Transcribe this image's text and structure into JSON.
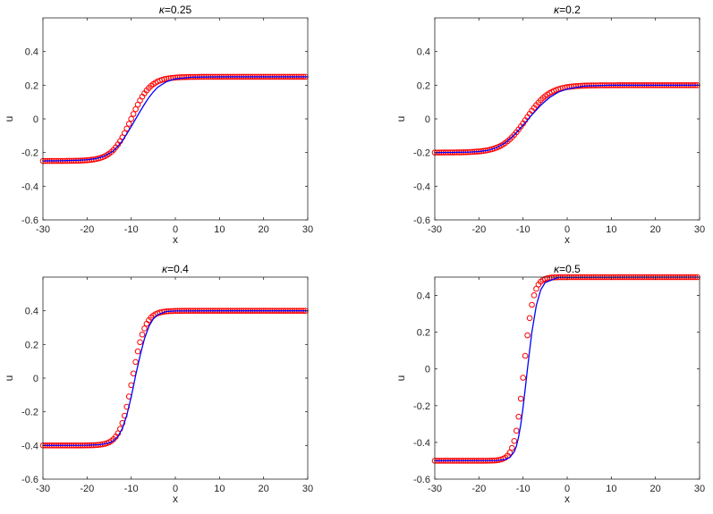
{
  "colors": {
    "curve": "#0000ff",
    "markers": "#ff0000",
    "axes": "#262626"
  },
  "chart_data": [
    {
      "type": "line",
      "title_symbol": "κ",
      "title": "=0.25",
      "xlabel": "x",
      "ylabel": "u",
      "xlim": [
        -30,
        30
      ],
      "ylim": [
        -0.6,
        0.6
      ],
      "xticks": [
        "-30",
        "-20",
        "-10",
        "0",
        "10",
        "20",
        "30"
      ],
      "yticks": [
        "-0.6",
        "-0.4",
        "-0.2",
        "0",
        "0.2",
        "0.4"
      ],
      "grid": false,
      "series": [
        {
          "style": "solid-line",
          "x": [
            -30,
            -26,
            -22,
            -20,
            -18,
            -16,
            -14,
            -13,
            -12,
            -11,
            -10,
            -9,
            -8,
            -7,
            -6,
            -5,
            -4,
            -2,
            0,
            4,
            10,
            20,
            30
          ],
          "y": [
            -0.25,
            -0.249,
            -0.246,
            -0.243,
            -0.236,
            -0.221,
            -0.19,
            -0.163,
            -0.13,
            -0.089,
            -0.046,
            -0.001,
            0.044,
            0.087,
            0.127,
            0.16,
            0.188,
            0.221,
            0.238,
            0.248,
            0.25,
            0.25,
            0.25
          ]
        },
        {
          "style": "circle-markers",
          "x_start": -30,
          "x_end": 29.5,
          "x_step": 0.5,
          "curve": {
            "form": "tanh",
            "amplitude": 0.25,
            "center": -10,
            "scale": 0.235
          }
        }
      ]
    },
    {
      "type": "line",
      "title_symbol": "κ",
      "title": "=0.2",
      "xlabel": "x",
      "ylabel": "u",
      "xlim": [
        -30,
        30
      ],
      "ylim": [
        -0.6,
        0.6
      ],
      "xticks": [
        "-30",
        "-20",
        "-10",
        "0",
        "10",
        "20",
        "30"
      ],
      "yticks": [
        "-0.6",
        "-0.4",
        "-0.2",
        "0",
        "0.2",
        "0.4"
      ],
      "grid": false,
      "series": [
        {
          "style": "solid-line",
          "x": [
            -30,
            -26,
            -22,
            -20,
            -18,
            -16,
            -14,
            -12,
            -10,
            -8,
            -6,
            -4,
            -2,
            0,
            4,
            10,
            20,
            30
          ],
          "y": [
            -0.2,
            -0.199,
            -0.197,
            -0.194,
            -0.187,
            -0.171,
            -0.142,
            -0.096,
            -0.038,
            0.024,
            0.081,
            0.127,
            0.159,
            0.178,
            0.195,
            0.2,
            0.2,
            0.2
          ]
        },
        {
          "style": "circle-markers",
          "x_start": -30,
          "x_end": 29.5,
          "x_step": 0.5,
          "curve": {
            "form": "tanh",
            "amplitude": 0.2,
            "center": -9.3,
            "scale": 0.19
          }
        }
      ]
    },
    {
      "type": "line",
      "title_symbol": "κ",
      "title": "=0.4",
      "xlabel": "x",
      "ylabel": "u",
      "xlim": [
        -30,
        30
      ],
      "ylim": [
        -0.6,
        0.6
      ],
      "xticks": [
        "-30",
        "-20",
        "-10",
        "0",
        "10",
        "20",
        "30"
      ],
      "yticks": [
        "-0.6",
        "-0.4",
        "-0.2",
        "0",
        "0.2",
        "0.4"
      ],
      "grid": false,
      "series": [
        {
          "style": "solid-line",
          "x": [
            -30,
            -20,
            -17,
            -15,
            -14,
            -13,
            -12,
            -11,
            -10,
            -9.5,
            -9,
            -8,
            -7,
            -6,
            -5,
            -4,
            -2,
            0,
            10,
            30
          ],
          "y": [
            -0.4,
            -0.399,
            -0.395,
            -0.385,
            -0.372,
            -0.346,
            -0.299,
            -0.221,
            -0.111,
            -0.049,
            0.016,
            0.132,
            0.234,
            0.307,
            0.352,
            0.376,
            0.396,
            0.399,
            0.4,
            0.4
          ]
        },
        {
          "style": "circle-markers",
          "x_start": -30,
          "x_end": 29.5,
          "x_step": 0.5,
          "curve": {
            "form": "tanh",
            "amplitude": 0.4,
            "center": -9.7,
            "scale": 0.35
          }
        }
      ]
    },
    {
      "type": "line",
      "title_symbol": "κ",
      "title": "=0.5",
      "xlabel": "x",
      "ylabel": "u",
      "xlim": [
        -30,
        30
      ],
      "ylim": [
        -0.6,
        0.5
      ],
      "xticks": [
        "-30",
        "-20",
        "-10",
        "0",
        "10",
        "20",
        "30"
      ],
      "yticks": [
        "-0.6",
        "-0.4",
        "-0.2",
        "0",
        "0.2",
        "0.4"
      ],
      "grid": false,
      "series": [
        {
          "style": "solid-line",
          "x": [
            -30,
            -16,
            -14,
            -13,
            -12,
            -11.5,
            -11,
            -10.5,
            -10,
            -9.5,
            -9,
            -8.5,
            -8,
            -7,
            -6,
            -5,
            -2,
            30
          ],
          "y": [
            -0.5,
            -0.499,
            -0.493,
            -0.482,
            -0.451,
            -0.42,
            -0.369,
            -0.3,
            -0.21,
            -0.107,
            0,
            0.102,
            0.2,
            0.345,
            0.43,
            0.47,
            0.499,
            0.5
          ]
        },
        {
          "style": "circle-markers",
          "x_start": -30,
          "x_end": 29.5,
          "x_step": 0.5,
          "curve": {
            "form": "tanh",
            "amplitude": 0.5,
            "center": -9.8,
            "scale": 0.48
          }
        }
      ]
    }
  ]
}
